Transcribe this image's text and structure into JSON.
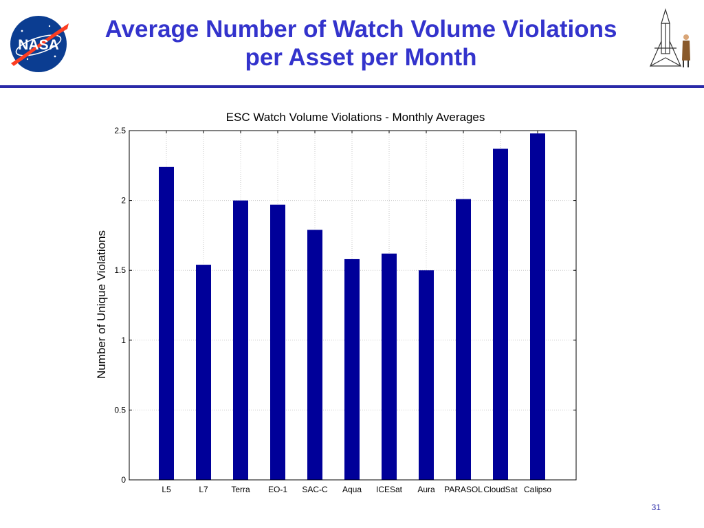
{
  "slide": {
    "title_line1": "Average Number of Watch Volume Violations",
    "title_line2": "per Asset per Month",
    "page_number": "31",
    "logo_text": "NASA"
  },
  "colors": {
    "title": "#3333cc",
    "rule": "#2a2aa8",
    "bar": "#000099",
    "grid": "#c8c8c8"
  },
  "icons": [
    "nasa-meatball-logo-icon",
    "rocket-with-figure-icon"
  ],
  "chart_data": {
    "type": "bar",
    "title": "ESC Watch Volume Violations - Monthly Averages",
    "xlabel": "",
    "ylabel": "Number of Unique Violations",
    "categories": [
      "L5",
      "L7",
      "Terra",
      "EO-1",
      "SAC-C",
      "Aqua",
      "ICESat",
      "Aura",
      "PARASOL",
      "CloudSat",
      "Calipso"
    ],
    "values": [
      2.24,
      1.54,
      2.0,
      1.97,
      1.79,
      1.58,
      1.62,
      1.5,
      2.01,
      2.37,
      2.48
    ],
    "ylim": [
      0,
      2.5
    ],
    "yticks": [
      0,
      0.5,
      1,
      1.5,
      2,
      2.5
    ],
    "ytick_labels": [
      "0",
      "0.5",
      "1",
      "1.5",
      "2",
      "2.5"
    ],
    "grid": true,
    "legend": "none"
  }
}
